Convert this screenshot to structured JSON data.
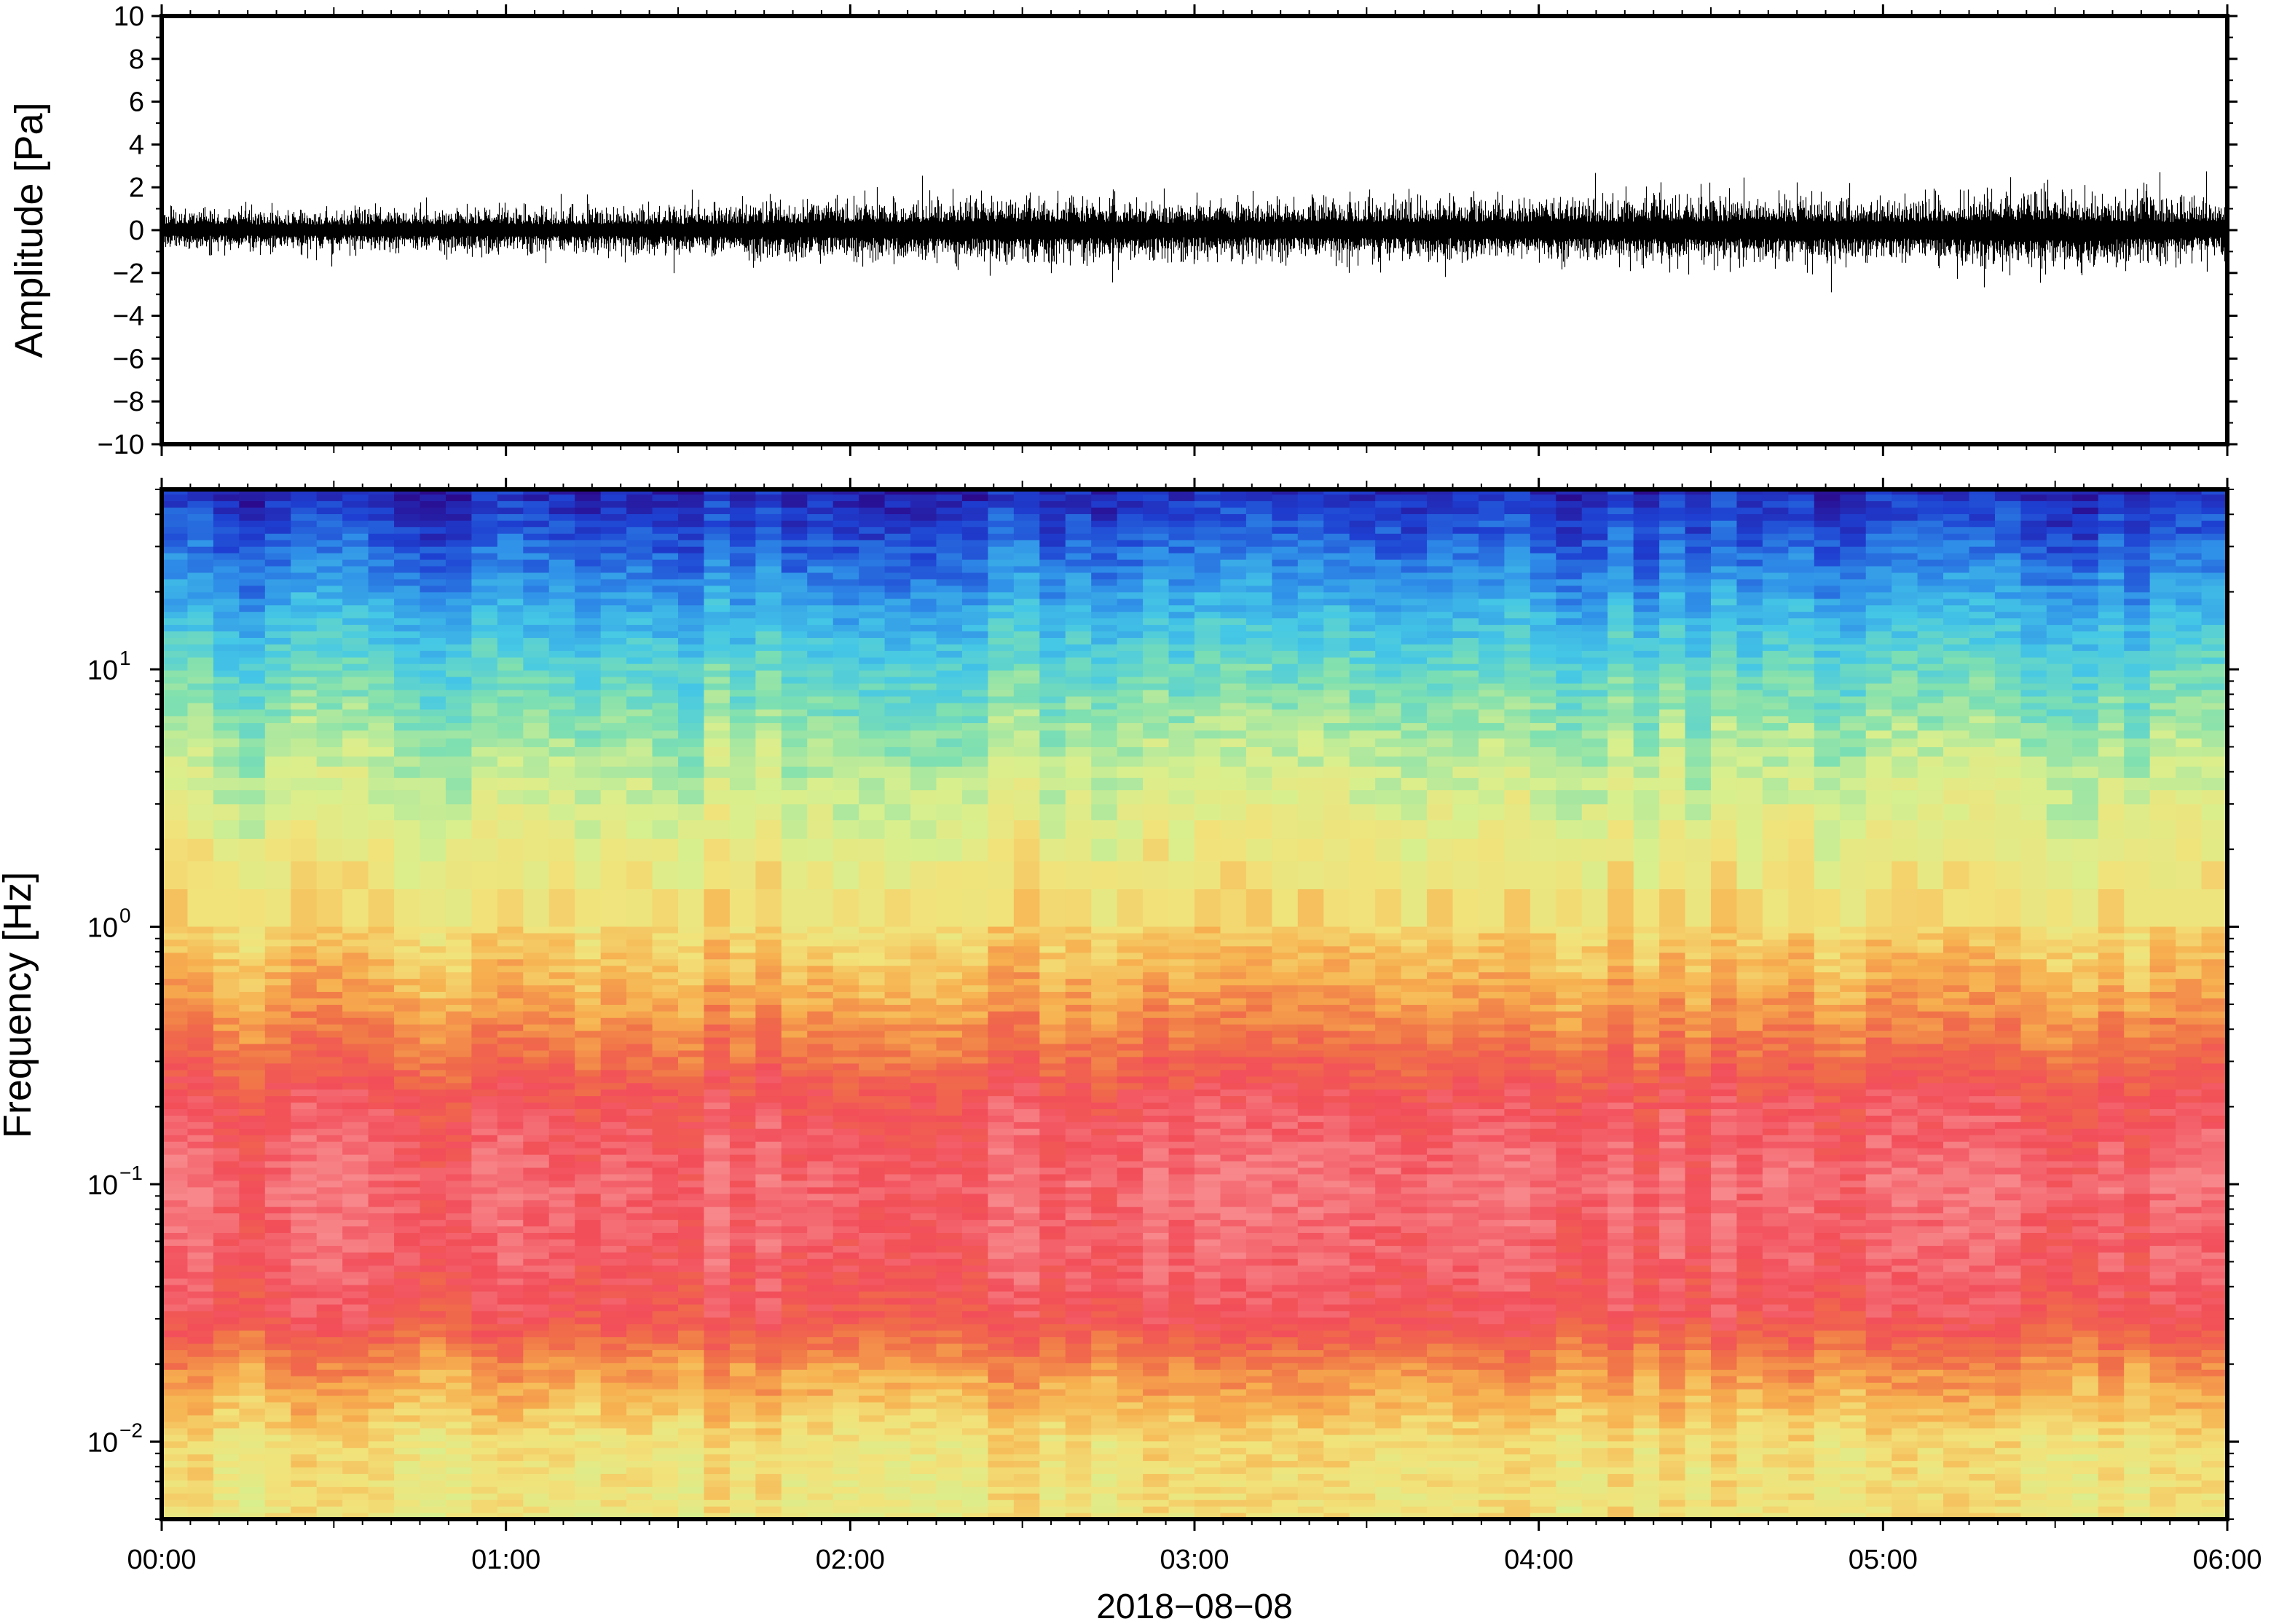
{
  "chart_data": [
    {
      "type": "line",
      "panel": "waveform",
      "ylabel": "Amplitude [Pa]",
      "ylim": [
        -10,
        10
      ],
      "yticks": [
        {
          "value": 10,
          "label": "10"
        },
        {
          "value": 8,
          "label": "8"
        },
        {
          "value": 6,
          "label": "6"
        },
        {
          "value": 4,
          "label": "4"
        },
        {
          "value": 2,
          "label": "2"
        },
        {
          "value": 0,
          "label": "0"
        },
        {
          "value": -2,
          "label": "−2"
        },
        {
          "value": -4,
          "label": "−4"
        },
        {
          "value": -6,
          "label": "−6"
        },
        {
          "value": -8,
          "label": "−8"
        },
        {
          "value": -10,
          "label": "−10"
        }
      ],
      "xlim": [
        "00:00",
        "06:00"
      ],
      "envelope": {
        "description_units": "Pa",
        "x": [
          "00:00",
          "00:30",
          "01:00",
          "01:30",
          "02:00",
          "02:30",
          "03:00",
          "03:30",
          "04:00",
          "04:30",
          "05:00",
          "05:30",
          "06:00"
        ],
        "typical_peak": [
          1.0,
          1.0,
          1.1,
          1.1,
          1.4,
          1.6,
          1.3,
          1.5,
          1.5,
          1.6,
          1.5,
          1.9,
          1.2
        ],
        "max_positive": 3.0,
        "min_negative": -3.2
      },
      "grid": false
    },
    {
      "type": "heatmap",
      "panel": "spectrogram",
      "ylabel": "Frequency [Hz]",
      "yscale": "log",
      "ylim": [
        0.005,
        50
      ],
      "yticks": [
        {
          "value": 0.01,
          "base": "10",
          "exp": "−2"
        },
        {
          "value": 0.1,
          "base": "10",
          "exp": "−1"
        },
        {
          "value": 1,
          "base": "10",
          "exp": "0"
        },
        {
          "value": 10,
          "base": "10",
          "exp": "1"
        }
      ],
      "xlabel": "2018−08−08",
      "xticks": [
        "00:00",
        "01:00",
        "02:00",
        "03:00",
        "04:00",
        "05:00",
        "06:00"
      ],
      "colormap": [
        "#2b0a8c",
        "#1e3fd1",
        "#2f8fe8",
        "#45c8e6",
        "#7fe0b0",
        "#d8ef8e",
        "#f2e27a",
        "#f7b04f",
        "#f07048",
        "#f24e5a",
        "#f7878a"
      ],
      "power_profile_by_frequency": {
        "frequency_hz": [
          0.005,
          0.01,
          0.02,
          0.03,
          0.05,
          0.1,
          0.2,
          0.3,
          0.5,
          1,
          2,
          5,
          10,
          20,
          50
        ],
        "relative_level": [
          0.58,
          0.6,
          0.75,
          0.88,
          0.92,
          0.95,
          0.9,
          0.82,
          0.72,
          0.62,
          0.55,
          0.45,
          0.35,
          0.22,
          0.05
        ]
      },
      "grid": false
    }
  ]
}
